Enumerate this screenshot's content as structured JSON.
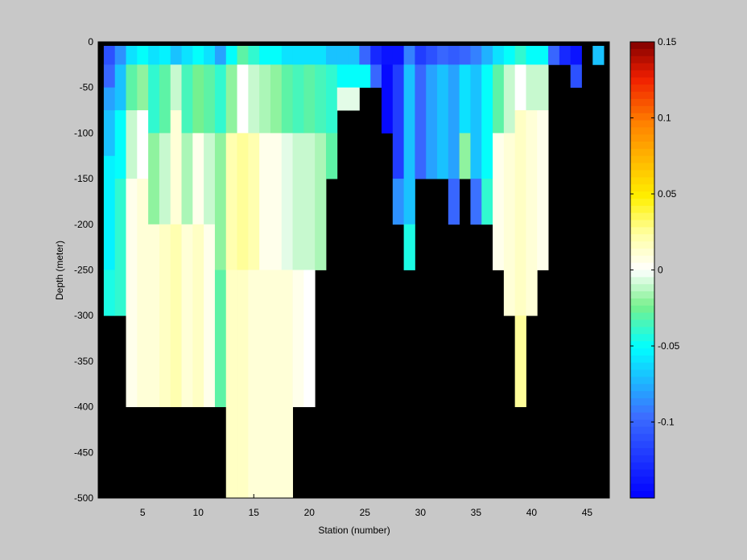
{
  "chart_data": {
    "type": "heatmap",
    "xlabel": "Station (number)",
    "ylabel": "Depth (meter)",
    "xlim": [
      1,
      47
    ],
    "ylim": [
      -500,
      0
    ],
    "xticks": [
      5,
      10,
      15,
      20,
      25,
      30,
      35,
      40,
      45
    ],
    "yticks": [
      0,
      -50,
      -100,
      -150,
      -200,
      -250,
      -300,
      -350,
      -400,
      -450,
      -500
    ],
    "colorbar": {
      "range": [
        -0.15,
        0.15
      ],
      "ticks": [
        0.15,
        0.1,
        0.05,
        0,
        -0.05,
        -0.1
      ],
      "colormap": "jet-with-white-center"
    },
    "background_color": "#000000",
    "stations": [
      2,
      3,
      4,
      5,
      6,
      7,
      8,
      9,
      10,
      11,
      12,
      13,
      14,
      15,
      16,
      17,
      18,
      19,
      20,
      21,
      22,
      23,
      24,
      25,
      26,
      27,
      28,
      29,
      30,
      31,
      32,
      33,
      34,
      35,
      36,
      37,
      38,
      39,
      40,
      41,
      42,
      43,
      44,
      45,
      46
    ],
    "profiles": [
      [
        [
          0,
          -25,
          -0.11
        ],
        [
          -25,
          -50,
          -0.1
        ],
        [
          -50,
          -75,
          -0.08
        ],
        [
          -75,
          -125,
          -0.07
        ],
        [
          -125,
          -250,
          -0.055
        ],
        [
          -250,
          -300,
          -0.045
        ]
      ],
      [
        [
          0,
          -25,
          -0.085
        ],
        [
          -25,
          -75,
          -0.07
        ],
        [
          -75,
          -150,
          -0.05
        ],
        [
          -150,
          -300,
          -0.04
        ]
      ],
      [
        [
          0,
          -25,
          -0.06
        ],
        [
          -25,
          -75,
          -0.03
        ],
        [
          -75,
          -150,
          -0.01
        ],
        [
          -150,
          -400,
          0.005
        ]
      ],
      [
        [
          0,
          -25,
          -0.05
        ],
        [
          -25,
          -75,
          -0.02
        ],
        [
          -75,
          -150,
          0.0
        ],
        [
          -150,
          -400,
          0.01
        ]
      ],
      [
        [
          0,
          -25,
          -0.06
        ],
        [
          -25,
          -100,
          -0.04
        ],
        [
          -100,
          -200,
          -0.02
        ],
        [
          -200,
          -400,
          0.01
        ]
      ],
      [
        [
          0,
          -25,
          -0.055
        ],
        [
          -25,
          -100,
          -0.03
        ],
        [
          -100,
          -200,
          -0.01
        ],
        [
          -200,
          -400,
          0.015
        ]
      ],
      [
        [
          0,
          -25,
          -0.07
        ],
        [
          -25,
          -75,
          -0.01
        ],
        [
          -75,
          -200,
          0.01
        ],
        [
          -200,
          -400,
          0.02
        ]
      ],
      [
        [
          0,
          -25,
          -0.06
        ],
        [
          -25,
          -100,
          -0.035
        ],
        [
          -100,
          -200,
          -0.015
        ],
        [
          -200,
          -400,
          0.01
        ]
      ],
      [
        [
          0,
          -25,
          -0.05
        ],
        [
          -25,
          -100,
          -0.025
        ],
        [
          -100,
          -200,
          0.005
        ],
        [
          -200,
          -400,
          0.015
        ]
      ],
      [
        [
          0,
          -25,
          -0.06
        ],
        [
          -25,
          -100,
          -0.03
        ],
        [
          -100,
          -200,
          -0.01
        ],
        [
          -200,
          -400,
          0.005
        ]
      ],
      [
        [
          0,
          -25,
          -0.08
        ],
        [
          -25,
          -100,
          -0.04
        ],
        [
          -100,
          -250,
          -0.02
        ],
        [
          -250,
          -400,
          -0.03
        ]
      ],
      [
        [
          0,
          -25,
          -0.05
        ],
        [
          -25,
          -100,
          -0.02
        ],
        [
          -100,
          -250,
          0.02
        ],
        [
          -250,
          -500,
          0.015
        ]
      ],
      [
        [
          0,
          -25,
          -0.03
        ],
        [
          -25,
          -100,
          0.0
        ],
        [
          -100,
          -250,
          0.025
        ],
        [
          -250,
          -500,
          0.015
        ]
      ],
      [
        [
          0,
          -25,
          -0.04
        ],
        [
          -25,
          -100,
          -0.01
        ],
        [
          -100,
          -250,
          0.02
        ],
        [
          -250,
          -500,
          0.01
        ]
      ],
      [
        [
          0,
          -25,
          -0.05
        ],
        [
          -25,
          -100,
          -0.015
        ],
        [
          -100,
          -250,
          0.005
        ],
        [
          -250,
          -500,
          0.01
        ]
      ],
      [
        [
          0,
          -25,
          -0.05
        ],
        [
          -25,
          -100,
          -0.02
        ],
        [
          -100,
          -250,
          0.005
        ],
        [
          -250,
          -500,
          0.01
        ]
      ],
      [
        [
          0,
          -25,
          -0.06
        ],
        [
          -25,
          -100,
          -0.03
        ],
        [
          -100,
          -250,
          -0.005
        ],
        [
          -250,
          -500,
          0.01
        ]
      ],
      [
        [
          0,
          -25,
          -0.06
        ],
        [
          -25,
          -100,
          -0.035
        ],
        [
          -100,
          -250,
          -0.01
        ],
        [
          -250,
          -400,
          0.005
        ]
      ],
      [
        [
          0,
          -25,
          -0.06
        ],
        [
          -25,
          -100,
          -0.03
        ],
        [
          -100,
          -250,
          -0.01
        ],
        [
          -250,
          -400,
          0.0
        ]
      ],
      [
        [
          0,
          -25,
          -0.06
        ],
        [
          -25,
          -100,
          -0.035
        ],
        [
          -100,
          -250,
          -0.015
        ]
      ],
      [
        [
          0,
          -25,
          -0.07
        ],
        [
          -25,
          -100,
          -0.04
        ],
        [
          -100,
          -150,
          -0.03
        ]
      ],
      [
        [
          0,
          -25,
          -0.07
        ],
        [
          -25,
          -50,
          -0.05
        ],
        [
          -50,
          -75,
          -0.005
        ]
      ],
      [
        [
          0,
          -25,
          -0.07
        ],
        [
          -25,
          -50,
          -0.05
        ],
        [
          -50,
          -75,
          -0.005
        ]
      ],
      [
        [
          0,
          -25,
          -0.1
        ],
        [
          -25,
          -50,
          -0.05
        ]
      ],
      [
        [
          0,
          -25,
          -0.13
        ],
        [
          -25,
          -50,
          -0.1
        ]
      ],
      [
        [
          0,
          -25,
          -0.14
        ],
        [
          -25,
          -100,
          -0.145
        ]
      ],
      [
        [
          0,
          -25,
          -0.14
        ],
        [
          -25,
          -150,
          -0.12
        ],
        [
          -150,
          -200,
          -0.085
        ]
      ],
      [
        [
          0,
          -25,
          -0.09
        ],
        [
          -25,
          -200,
          -0.07
        ],
        [
          -200,
          -250,
          -0.045
        ]
      ],
      [
        [
          0,
          -25,
          -0.12
        ],
        [
          -25,
          -150,
          -0.1
        ]
      ],
      [
        [
          0,
          -25,
          -0.11
        ],
        [
          -25,
          -150,
          -0.08
        ]
      ],
      [
        [
          0,
          -25,
          -0.1
        ],
        [
          -25,
          -150,
          -0.07
        ]
      ],
      [
        [
          0,
          -25,
          -0.105
        ],
        [
          -25,
          -150,
          -0.08
        ],
        [
          -150,
          -200,
          -0.1
        ]
      ],
      [
        [
          0,
          -25,
          -0.1
        ],
        [
          -25,
          -100,
          -0.06
        ],
        [
          -100,
          -150,
          -0.02
        ]
      ],
      [
        [
          0,
          -25,
          -0.09
        ],
        [
          -25,
          -150,
          -0.07
        ],
        [
          -150,
          -200,
          -0.095
        ]
      ],
      [
        [
          0,
          -25,
          -0.075
        ],
        [
          -25,
          -150,
          -0.05
        ],
        [
          -150,
          -200,
          -0.04
        ]
      ],
      [
        [
          0,
          -25,
          -0.06
        ],
        [
          -25,
          -100,
          -0.03
        ],
        [
          -100,
          -250,
          0.005
        ]
      ],
      [
        [
          0,
          -25,
          -0.05
        ],
        [
          -25,
          -100,
          -0.01
        ],
        [
          -100,
          -300,
          0.01
        ]
      ],
      [
        [
          0,
          -25,
          -0.04
        ],
        [
          -25,
          -75,
          0.0
        ],
        [
          -75,
          -300,
          0.015
        ],
        [
          -300,
          -400,
          0.025
        ]
      ],
      [
        [
          0,
          -25,
          -0.05
        ],
        [
          -25,
          -75,
          -0.01
        ],
        [
          -75,
          -300,
          0.01
        ]
      ],
      [
        [
          0,
          -25,
          -0.05
        ],
        [
          -25,
          -75,
          -0.01
        ],
        [
          -75,
          -250,
          0.005
        ]
      ],
      [
        [
          0,
          -25,
          -0.1
        ]
      ],
      [
        [
          0,
          -25,
          -0.13
        ]
      ],
      [
        [
          0,
          -25,
          -0.14
        ],
        [
          -25,
          -50,
          -0.11
        ]
      ],
      [],
      [
        [
          0,
          -25,
          -0.07
        ]
      ]
    ]
  }
}
